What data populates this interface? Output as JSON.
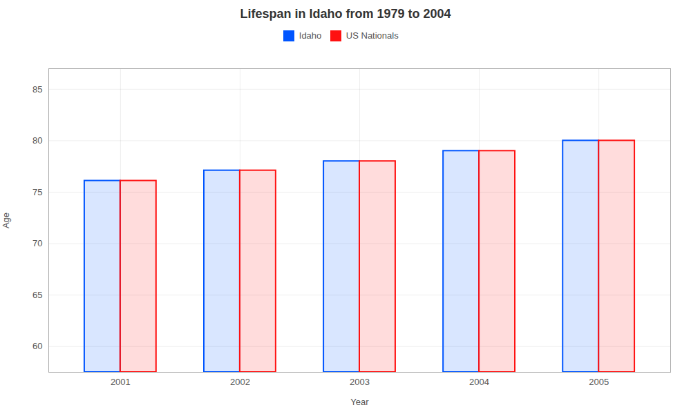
{
  "chart_data": {
    "type": "bar",
    "title": "Lifespan in Idaho from 1979 to 2004",
    "xlabel": "Year",
    "ylabel": "Age",
    "categories": [
      "2001",
      "2002",
      "2003",
      "2004",
      "2005"
    ],
    "series": [
      {
        "name": "Idaho",
        "color": "#0055ff",
        "values": [
          76.1,
          77.1,
          78.0,
          79.0,
          80.0
        ]
      },
      {
        "name": "US Nationals",
        "color": "#ff1111",
        "values": [
          76.1,
          77.1,
          78.0,
          79.0,
          80.0
        ]
      }
    ],
    "ylim": [
      57.5,
      87
    ],
    "yticks": [
      60,
      65,
      70,
      75,
      80,
      85
    ],
    "grid": true,
    "legend": "top"
  }
}
